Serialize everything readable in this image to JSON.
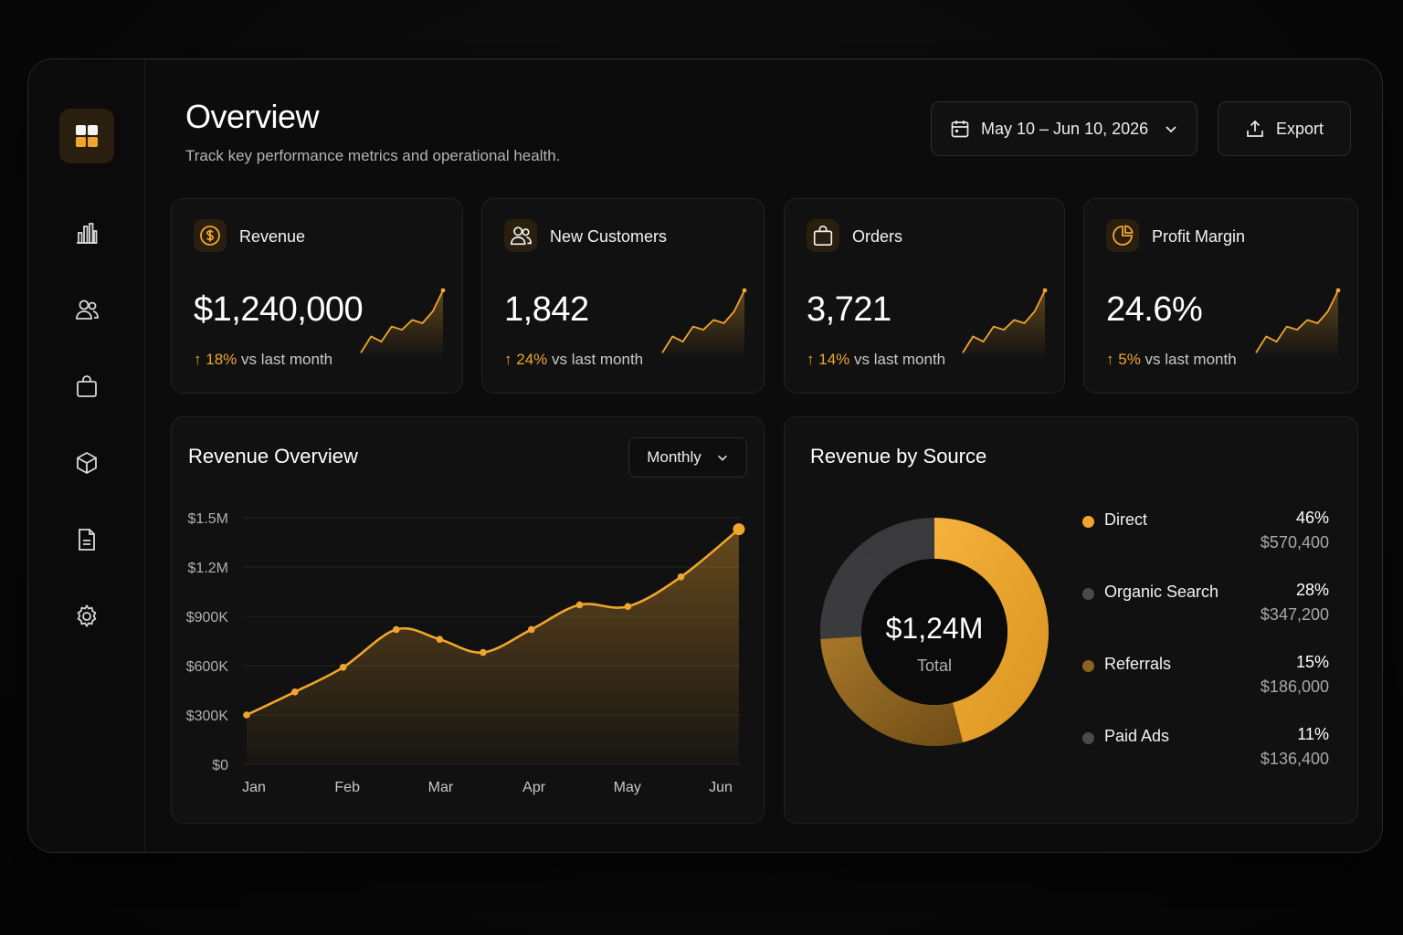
{
  "header": {
    "title": "Overview",
    "subtitle": "Track key performance metrics and operational health.",
    "date_range": "May 10 – Jun 10, 2026",
    "export_label": "Export"
  },
  "sidebar": {
    "items": [
      {
        "icon": "dashboard-grid-icon",
        "active": true
      },
      {
        "icon": "bar-chart-icon",
        "active": false
      },
      {
        "icon": "users-icon",
        "active": false
      },
      {
        "icon": "shopping-bag-icon",
        "active": false
      },
      {
        "icon": "box-icon",
        "active": false
      },
      {
        "icon": "document-icon",
        "active": false
      },
      {
        "icon": "settings-gear-icon",
        "active": false
      }
    ]
  },
  "kpis": [
    {
      "label": "Revenue",
      "value": "$1,240,000",
      "change": "18%",
      "change_suffix": " vs last month",
      "icon": "dollar-coin-icon",
      "trend": [
        0.05,
        0.3,
        0.22,
        0.45,
        0.4,
        0.55,
        0.5,
        0.68,
        1.0
      ]
    },
    {
      "label": "New Customers",
      "value": "1,842",
      "change": "24%",
      "change_suffix": " vs last month",
      "icon": "users-icon",
      "trend": [
        0.05,
        0.3,
        0.22,
        0.45,
        0.4,
        0.55,
        0.5,
        0.68,
        1.0
      ]
    },
    {
      "label": "Orders",
      "value": "3,721",
      "change": "14%",
      "change_suffix": " vs last month",
      "icon": "shopping-bag-icon",
      "trend": [
        0.05,
        0.3,
        0.22,
        0.45,
        0.4,
        0.55,
        0.5,
        0.68,
        1.0
      ]
    },
    {
      "label": "Profit Margin",
      "value": "24.6%",
      "change": "5%",
      "change_suffix": " vs last month",
      "icon": "pie-chart-icon",
      "trend": [
        0.05,
        0.3,
        0.22,
        0.45,
        0.4,
        0.55,
        0.5,
        0.68,
        1.0
      ]
    }
  ],
  "revenue_overview": {
    "title": "Revenue Overview",
    "period_label": "Monthly"
  },
  "revenue_by_source": {
    "title": "Revenue by Source",
    "center_value": "$1,24M",
    "center_label": "Total"
  },
  "colors": {
    "accent": "#f0a52e",
    "background": "#0c0c0d",
    "card": "#111112"
  },
  "chart_data": [
    {
      "type": "area",
      "title": "Revenue Overview",
      "categories": [
        "Jan",
        "Feb",
        "Mar",
        "Apr",
        "May",
        "Jun"
      ],
      "y_ticks": [
        "$0",
        "$300K",
        "$600K",
        "$900K",
        "$1.2M",
        "$1.5M"
      ],
      "ylim": [
        0,
        1500000
      ],
      "x": [
        0,
        0.5,
        1.0,
        1.55,
        2.0,
        2.45,
        2.95,
        3.45,
        3.95,
        4.5,
        5.1
      ],
      "values": [
        300000,
        440000,
        590000,
        820000,
        760000,
        680000,
        820000,
        970000,
        960000,
        1140000,
        1430000
      ],
      "grid": true
    },
    {
      "type": "pie",
      "title": "Revenue by Source",
      "slices": [
        {
          "label": "Direct",
          "percent": "46%",
          "value": "$570,400",
          "share": 46,
          "color": "#f0a52e"
        },
        {
          "label": "Organic Search",
          "percent": "28%",
          "value": "$347,200",
          "share": 28,
          "color": "#8a6222"
        },
        {
          "label": "Referrals",
          "percent": "15%",
          "value": "$186,000",
          "share": 15,
          "color": "#3b3b3d"
        },
        {
          "label": "Paid Ads",
          "percent": "11%",
          "value": "$136,400",
          "share": 11,
          "color": "#3a3a3c"
        }
      ],
      "legend_dot_colors": [
        "#f0a52e",
        "#4a4a4c",
        "#8a6222",
        "#4a4a4c"
      ]
    }
  ]
}
